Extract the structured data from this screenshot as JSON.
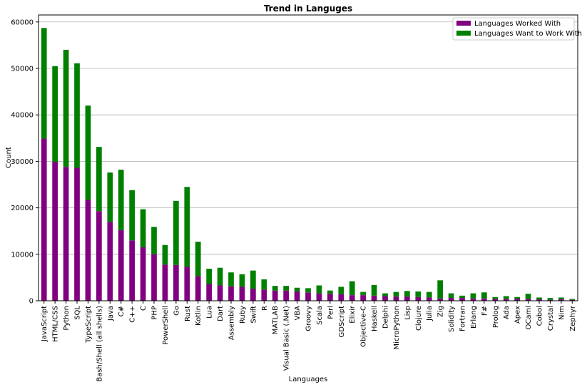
{
  "chart_data": {
    "type": "bar",
    "stacked": true,
    "title": "Trend in Languges",
    "xlabel": "Languages",
    "ylabel": "Count",
    "ylim": [
      0,
      61500
    ],
    "yticks": [
      0,
      10000,
      20000,
      30000,
      40000,
      50000,
      60000
    ],
    "grid": "horizontal",
    "legend_position": "top-right",
    "categories": [
      "JavaScript",
      "HTML/CSS",
      "Python",
      "SQL",
      "TypeScript",
      "Bash/Shell (all shells)",
      "Java",
      "C#",
      "C++",
      "C",
      "PHP",
      "PowerShell",
      "Go",
      "Rust",
      "Kotlin",
      "Lua",
      "Dart",
      "Assembly",
      "Ruby",
      "Swift",
      "R",
      "MATLAB",
      "Visual Basic (.Net)",
      "VBA",
      "Groovy",
      "Scala",
      "Perl",
      "GDScript",
      "Elixir",
      "Objective-C",
      "Haskell",
      "Delphi",
      "MicroPython",
      "Lisp",
      "Clojure",
      "Julia",
      "Zig",
      "Solidity",
      "Fortran",
      "Erlang",
      "F#",
      "Prolog",
      "Ada",
      "Apex",
      "OCaml",
      "Cobol",
      "Crystal",
      "Nim",
      "Zephyr"
    ],
    "series": [
      {
        "name": "Languages Worked With",
        "color": "#800080",
        "values": [
          34900,
          29900,
          28800,
          28600,
          21700,
          19300,
          17000,
          15200,
          13000,
          11500,
          10000,
          7800,
          7700,
          7300,
          5300,
          3600,
          3300,
          3100,
          3000,
          2600,
          2400,
          2200,
          2200,
          2000,
          1800,
          1600,
          1500,
          1400,
          1200,
          1200,
          1100,
          1000,
          900,
          900,
          800,
          700,
          500,
          600,
          600,
          500,
          500,
          400,
          400,
          400,
          400,
          300,
          200,
          300,
          200
        ]
      },
      {
        "name": "Languages Want to Work With",
        "color": "#008000",
        "values": [
          23800,
          20600,
          25200,
          22500,
          20300,
          13800,
          10600,
          13000,
          10800,
          8200,
          5900,
          4200,
          13800,
          17200,
          7400,
          3300,
          3800,
          3000,
          2700,
          3900,
          2200,
          1000,
          1000,
          800,
          900,
          1700,
          700,
          1600,
          3000,
          700,
          2300,
          600,
          1000,
          1200,
          1200,
          1200,
          3900,
          1000,
          500,
          1100,
          1300,
          400,
          600,
          400,
          1100,
          400,
          400,
          400,
          200
        ]
      }
    ]
  }
}
